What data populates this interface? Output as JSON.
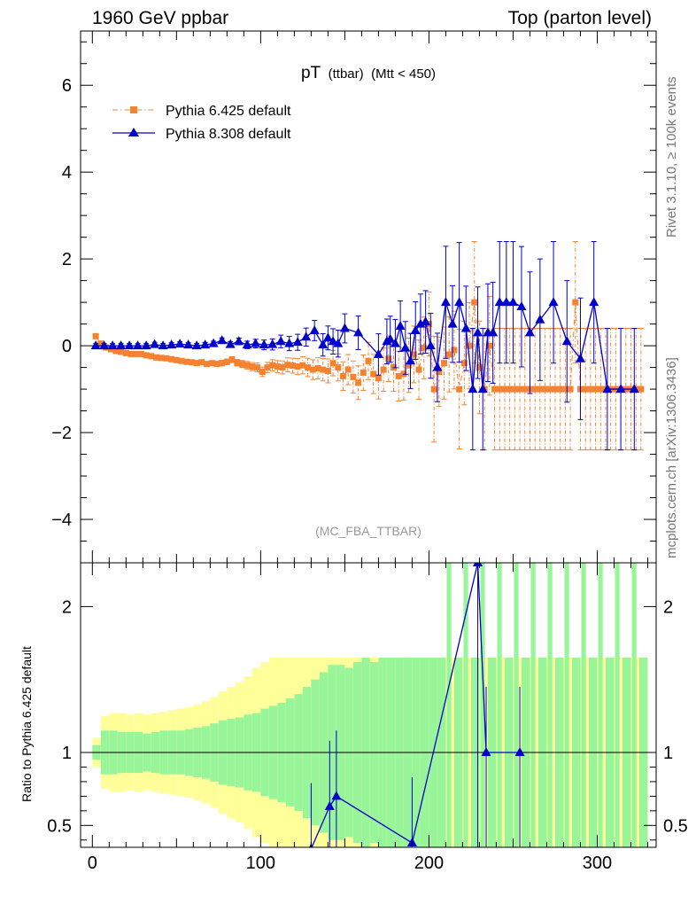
{
  "header": {
    "left": "1960 GeV ppbar",
    "right": "Top (parton level)"
  },
  "side_labels": {
    "rivet": "Rivet 3.1.10, ≥ 100k events",
    "mcplots": "mcplots.cern.ch [arXiv:1306.3436]"
  },
  "chart_data": [
    {
      "type": "line",
      "panel": "main",
      "title": {
        "main": "pT",
        "sub": "(ttbar)",
        "cond": "(Mtt < 450)"
      },
      "watermark": "(MC_FBA_TTBAR)",
      "xlim": [
        -7,
        335
      ],
      "ylim": [
        -5,
        7.25
      ],
      "yticks": [
        -4,
        -2,
        0,
        2,
        4,
        6
      ],
      "ytick_labels": [
        "−4",
        "−2",
        "0",
        "2",
        "4",
        "6"
      ],
      "legend_position": "top-left",
      "series": [
        {
          "name": "Pythia 6.425 default",
          "color": "#f58231",
          "marker": "square",
          "style": "dash-dot",
          "x": [
            2,
            5,
            8,
            11,
            14,
            17,
            20,
            23,
            26,
            29,
            32,
            35,
            38,
            41,
            44,
            47,
            50,
            53,
            56,
            59,
            62,
            65,
            68,
            71,
            74,
            77,
            80,
            83,
            86,
            89,
            92,
            95,
            98,
            101,
            104,
            107,
            110,
            113,
            116,
            119,
            122,
            125,
            128,
            131,
            134,
            137,
            140,
            143,
            146,
            149,
            152,
            155,
            158,
            161,
            164,
            167,
            170,
            173,
            176,
            179,
            182,
            185,
            188,
            191,
            194,
            197,
            200,
            203,
            206,
            209,
            212,
            215,
            218,
            221,
            224,
            227,
            230,
            233,
            236,
            239,
            242,
            245,
            248,
            251,
            254,
            257,
            260,
            263,
            266,
            269,
            272,
            275,
            278,
            281,
            284,
            287,
            290,
            293,
            296,
            299,
            302,
            305,
            308,
            311,
            314,
            317,
            320,
            323,
            326
          ],
          "y": [
            0.22,
            0.05,
            -0.04,
            -0.08,
            -0.12,
            -0.14,
            -0.17,
            -0.19,
            -0.19,
            -0.19,
            -0.22,
            -0.24,
            -0.27,
            -0.28,
            -0.29,
            -0.31,
            -0.33,
            -0.35,
            -0.37,
            -0.38,
            -0.4,
            -0.38,
            -0.42,
            -0.4,
            -0.42,
            -0.4,
            -0.37,
            -0.32,
            -0.39,
            -0.42,
            -0.45,
            -0.48,
            -0.5,
            -0.6,
            -0.5,
            -0.45,
            -0.48,
            -0.5,
            -0.44,
            -0.46,
            -0.48,
            -0.45,
            -0.5,
            -0.55,
            -0.52,
            -0.55,
            -0.58,
            -0.4,
            -0.5,
            -0.7,
            -0.55,
            -0.72,
            -0.85,
            -0.62,
            -0.35,
            -0.65,
            -0.75,
            -0.55,
            -0.3,
            -0.5,
            -0.7,
            -0.65,
            -0.45,
            -0.2,
            -0.55,
            -0.05,
            0.5,
            -1,
            -0.6,
            -0.4,
            -0.2,
            -0.1,
            -1,
            -0.4,
            0.0,
            1.0,
            -0.5,
            -1,
            0,
            -1,
            -1,
            -1,
            -1,
            -1,
            -1,
            -1,
            -1,
            -1,
            -1,
            -1,
            -1,
            -1,
            -1,
            -1,
            -1,
            1.0,
            -1,
            -1,
            -1,
            -1,
            -1,
            -1,
            -1,
            -1,
            -1,
            -1,
            -1,
            -1,
            -1
          ]
        },
        {
          "name": "Pythia 8.308 default",
          "color": "#0000cc",
          "marker": "triangle",
          "style": "solid",
          "x": [
            2,
            7,
            12,
            17,
            22,
            27,
            32,
            37,
            42,
            47,
            52,
            57,
            62,
            67,
            72,
            77,
            82,
            87,
            92,
            97,
            102,
            107,
            112,
            117,
            122,
            127,
            132,
            137,
            140,
            143,
            146,
            150,
            158,
            170,
            175,
            177,
            180,
            183,
            186,
            189,
            192,
            195,
            198,
            201,
            205,
            210,
            214,
            218,
            222,
            226,
            229,
            232,
            235,
            238,
            242,
            246,
            250,
            255,
            260,
            266,
            274,
            282,
            290,
            298,
            306,
            314,
            322
          ],
          "y": [
            0,
            0,
            0,
            0,
            0,
            0,
            0,
            0.03,
            0,
            0.02,
            0.04,
            0.02,
            0,
            0.02,
            0.05,
            0.12,
            0.03,
            0.1,
            0.02,
            0.05,
            0.02,
            0.03,
            0.1,
            0.05,
            0.08,
            0.2,
            0.35,
            0.02,
            0.18,
            0.1,
            0.05,
            0.4,
            0.3,
            -0.2,
            0.1,
            0.15,
            0.05,
            0.45,
            -0.05,
            -0.35,
            0.35,
            0.5,
            0.55,
            0.0,
            -0.5,
            1.0,
            0.5,
            1.0,
            0.4,
            -1.0,
            0.3,
            -1.0,
            0.3,
            0.3,
            1.0,
            1.0,
            1.0,
            0.9,
            0.3,
            0.6,
            1.0,
            0.1,
            -0.3,
            1.0,
            -1.0,
            -1.0,
            -1.0
          ]
        }
      ]
    },
    {
      "type": "line",
      "panel": "ratio",
      "ylabel": "Ratio to Pythia 6.425 default",
      "xlim": [
        -7,
        335
      ],
      "ylim": [
        0.35,
        2.3
      ],
      "yticks": [
        0.5,
        1,
        2
      ],
      "ytick_labels": [
        "0.5",
        "1",
        "2"
      ],
      "xticks": [
        0,
        100,
        200,
        300
      ],
      "xtick_labels": [
        "0",
        "100",
        "200",
        "300"
      ],
      "reference_line": 1,
      "band_colors": {
        "inner": "#99f599",
        "outer": "#ffff99"
      },
      "band_x": [
        0,
        5,
        10,
        15,
        20,
        25,
        30,
        35,
        40,
        45,
        50,
        55,
        60,
        65,
        70,
        75,
        80,
        85,
        90,
        95,
        100,
        105,
        110,
        115,
        120,
        125,
        130,
        135,
        140,
        145,
        150,
        155,
        160,
        165,
        170,
        175,
        180,
        185,
        190,
        195,
        200,
        205,
        210,
        215,
        220,
        225,
        230,
        235,
        240,
        245,
        250,
        255,
        260,
        265,
        270,
        275,
        280,
        285,
        290,
        295,
        300,
        305,
        310,
        315,
        320,
        325,
        330
      ],
      "band_inner": [
        0.95,
        0.85,
        0.85,
        0.86,
        0.86,
        0.86,
        0.87,
        0.86,
        0.85,
        0.85,
        0.85,
        0.84,
        0.83,
        0.82,
        0.8,
        0.78,
        0.77,
        0.76,
        0.74,
        0.73,
        0.7,
        0.68,
        0.66,
        0.63,
        0.6,
        0.55,
        0.5,
        0.45,
        0.4,
        0.4,
        0.42,
        0.38,
        0.35,
        0.38,
        0.35,
        0.35,
        0.35,
        0.35,
        0.35,
        0.35,
        0.35,
        0.35,
        0.35,
        0.35,
        0.35,
        0.35,
        0.35,
        0.35,
        0.35,
        0.35,
        0.35,
        0.35,
        0.35,
        0.35,
        0.35,
        0.35,
        0.35,
        0.35,
        0.35,
        0.35,
        0.35,
        0.35,
        0.35,
        0.35,
        0.35,
        0.35,
        0.35
      ],
      "band_outer": [
        0.9,
        0.75,
        0.73,
        0.73,
        0.74,
        0.73,
        0.74,
        0.73,
        0.72,
        0.71,
        0.7,
        0.69,
        0.67,
        0.65,
        0.62,
        0.58,
        0.55,
        0.52,
        0.48,
        0.42,
        0.38,
        0.35,
        0.35,
        0.35,
        0.35,
        0.35,
        0.35,
        0.35,
        0.35,
        0.35,
        0.35,
        0.35,
        0.35,
        0.35,
        0.35,
        0.35,
        0.35,
        0.35,
        0.35,
        0.35,
        0.35,
        0.35,
        0.35,
        0.35,
        0.35,
        0.35,
        0.35,
        0.35,
        0.35,
        0.35,
        0.35,
        0.35,
        0.35,
        0.35,
        0.35,
        0.35,
        0.35,
        0.35,
        0.35,
        0.35,
        0.35,
        0.35,
        0.35,
        0.35,
        0.35,
        0.35,
        0.35
      ],
      "series": [
        {
          "name": "Pythia 6.425 default",
          "color": "#f58231",
          "x": [
            0,
            330
          ],
          "y": [
            1,
            1
          ]
        },
        {
          "name": "Pythia 8.308 default",
          "color": "#0000cc",
          "marker": "triangle",
          "x": [
            130,
            141,
            145,
            190,
            229,
            234,
            254
          ],
          "y": [
            0.34,
            0.63,
            0.7,
            0.38,
            2.3,
            1.0,
            1.0
          ]
        }
      ]
    }
  ]
}
